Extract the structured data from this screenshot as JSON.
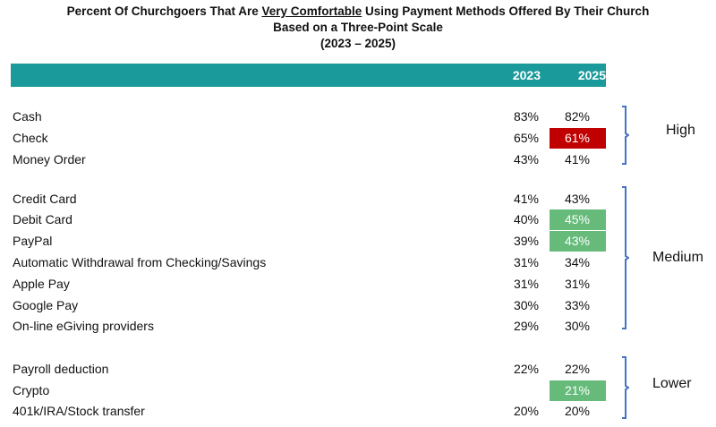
{
  "title": {
    "line1_pre": "Percent Of Churchgoers That Are ",
    "line1_underline": "Very Comfortable",
    "line1_post": " Using Payment Methods Offered By Their Church",
    "line2": "Based on a Three-Point Scale",
    "line3": "(2023 – 2025)"
  },
  "colors": {
    "header": "#1a9a9b",
    "decline": "#c00000",
    "increase": "#66bb7a",
    "bracket": "#4472c4"
  },
  "chart_data": {
    "type": "table",
    "columns": [
      "2023",
      "2025"
    ],
    "groups": [
      {
        "name": "High",
        "rows": [
          {
            "label": "Cash",
            "v2023": "83%",
            "v2025": "82%",
            "highlight": ""
          },
          {
            "label": "Check",
            "v2023": "65%",
            "v2025": "61%",
            "highlight": "red"
          },
          {
            "label": "Money Order",
            "v2023": "43%",
            "v2025": "41%",
            "highlight": ""
          }
        ]
      },
      {
        "name": "Medium",
        "rows": [
          {
            "label": "Credit Card",
            "v2023": "41%",
            "v2025": "43%",
            "highlight": ""
          },
          {
            "label": "Debit Card",
            "v2023": "40%",
            "v2025": "45%",
            "highlight": "green"
          },
          {
            "label": "PayPal",
            "v2023": "39%",
            "v2025": "43%",
            "highlight": "green"
          },
          {
            "label": "Automatic Withdrawal from Checking/Savings",
            "v2023": "31%",
            "v2025": "34%",
            "highlight": ""
          },
          {
            "label": "Apple Pay",
            "v2023": "31%",
            "v2025": "31%",
            "highlight": ""
          },
          {
            "label": "Google Pay",
            "v2023": "30%",
            "v2025": "33%",
            "highlight": ""
          },
          {
            "label": "On-line eGiving providers",
            "v2023": "29%",
            "v2025": "30%",
            "highlight": ""
          }
        ]
      },
      {
        "name": "Lower",
        "rows": [
          {
            "label": "Payroll deduction",
            "v2023": "22%",
            "v2025": "22%",
            "highlight": ""
          },
          {
            "label": "Crypto",
            "v2023": "",
            "v2025": "21%",
            "highlight": "green"
          },
          {
            "label": "401k/IRA/Stock transfer",
            "v2023": "20%",
            "v2025": "20%",
            "highlight": ""
          }
        ]
      }
    ]
  }
}
